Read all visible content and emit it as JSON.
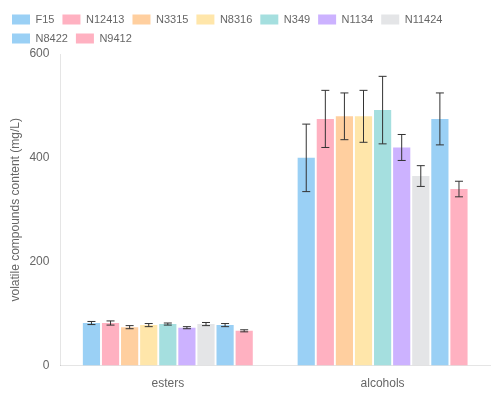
{
  "chart_data": {
    "type": "bar",
    "categories": [
      "esters",
      "alcohols"
    ],
    "series": [
      {
        "name": "F15",
        "values": [
          82,
          400
        ],
        "errors": [
          3,
          65
        ]
      },
      {
        "name": "N12413",
        "values": [
          82,
          475
        ],
        "errors": [
          4,
          55
        ]
      },
      {
        "name": "N3315",
        "values": [
          74,
          480
        ],
        "errors": [
          3,
          45
        ]
      },
      {
        "name": "N8316",
        "values": [
          78,
          480
        ],
        "errors": [
          3,
          50
        ]
      },
      {
        "name": "N349",
        "values": [
          80,
          492
        ],
        "errors": [
          2,
          65
        ]
      },
      {
        "name": "N1134",
        "values": [
          73,
          420
        ],
        "errors": [
          2,
          25
        ]
      },
      {
        "name": "N11424",
        "values": [
          80,
          365
        ],
        "errors": [
          3,
          20
        ]
      },
      {
        "name": "N8422",
        "values": [
          78,
          475
        ],
        "errors": [
          3,
          50
        ]
      },
      {
        "name": "N9412",
        "values": [
          67,
          340
        ],
        "errors": [
          2,
          15
        ]
      }
    ],
    "ylabel": "volatile compounds content (mg/L)",
    "ylim": [
      0,
      600
    ],
    "yticks": [
      0,
      200,
      400,
      600
    ],
    "grid": false,
    "legend": "upper left"
  }
}
